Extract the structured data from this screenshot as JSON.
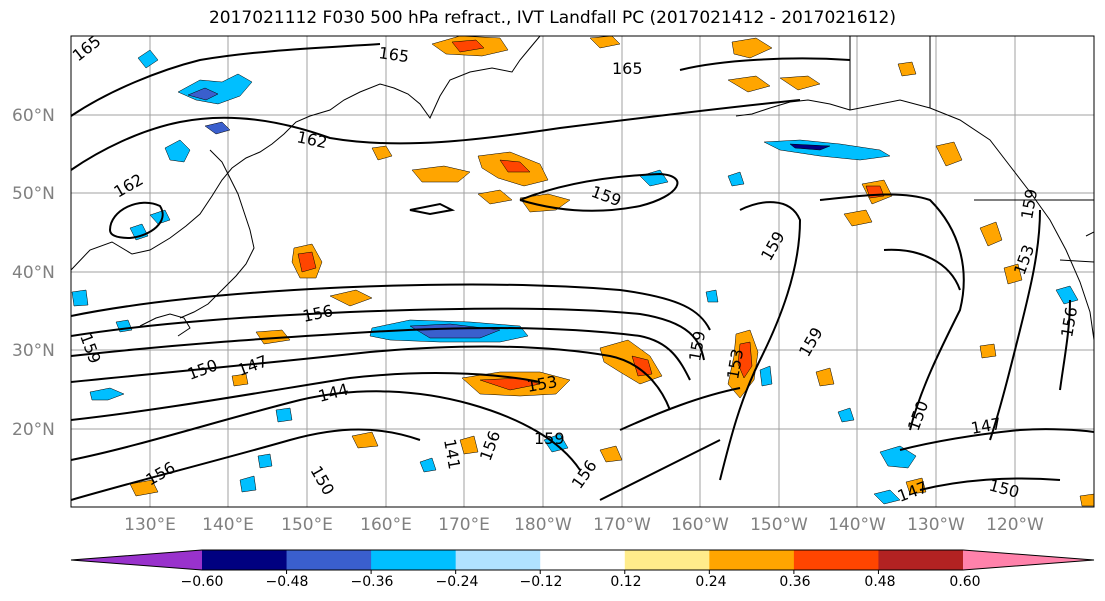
{
  "title": "2017021112 F030 500 hPa refract., IVT Landfall PC (2017021412 - 2017021612)",
  "lat_ticks": [
    "60°N",
    "50°N",
    "40°N",
    "30°N",
    "20°N"
  ],
  "lon_ticks": [
    "130°E",
    "140°E",
    "150°E",
    "160°E",
    "170°E",
    "180°W",
    "170°W",
    "160°W",
    "150°W",
    "140°W",
    "130°W",
    "120°W"
  ],
  "contour_labels": [
    "165",
    "165",
    "165",
    "162",
    "162",
    "159",
    "159",
    "159",
    "159",
    "159",
    "159",
    "156",
    "156",
    "156",
    "156",
    "156",
    "153",
    "153",
    "153",
    "150",
    "150",
    "150",
    "150",
    "147",
    "147",
    "147",
    "144",
    "141",
    "159"
  ],
  "colorbar": {
    "ticks": [
      "−0.60",
      "−0.48",
      "−0.36",
      "−0.24",
      "−0.12",
      "0.12",
      "0.24",
      "0.36",
      "0.48",
      "0.60"
    ],
    "colors": [
      "#9932cc",
      "#000080",
      "#3a5fcd",
      "#00bfff",
      "#b0e2ff",
      "#ffffff",
      "#ffec8b",
      "#ffa500",
      "#ff4500",
      "#b22222",
      "#ff82ab"
    ]
  }
}
